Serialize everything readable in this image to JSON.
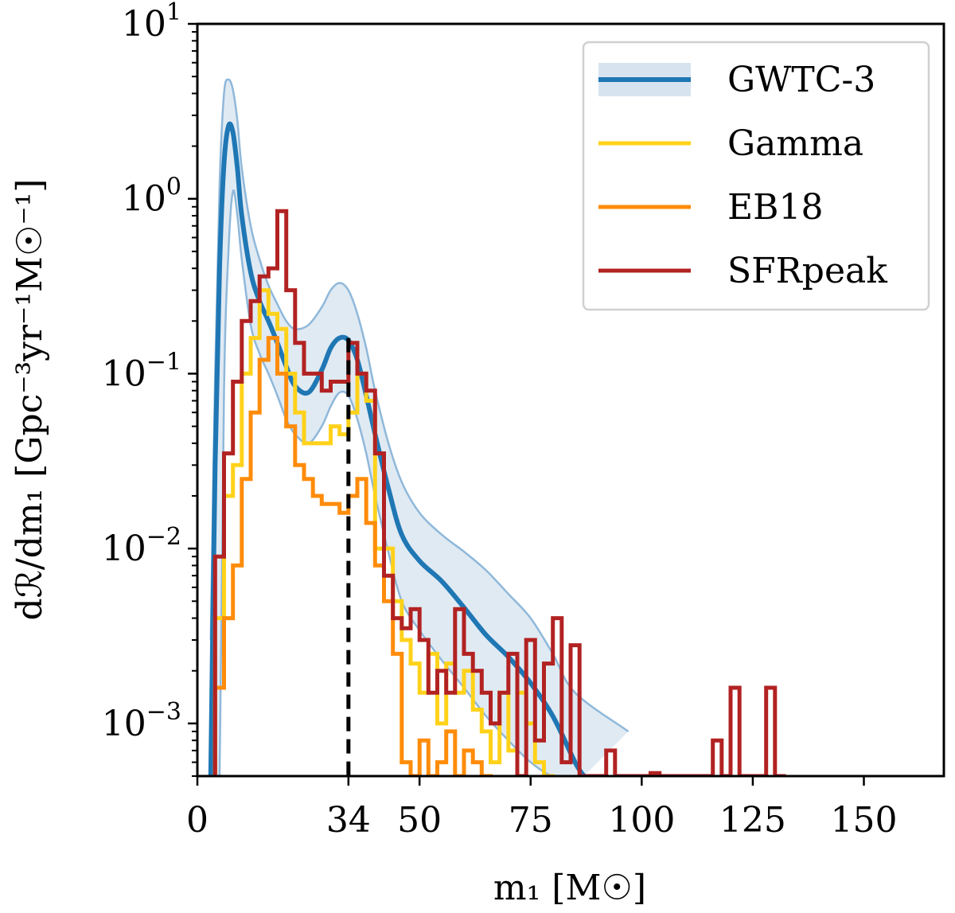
{
  "chart_data": {
    "type": "line",
    "title": "",
    "xlabel": "m₁ [M☉]",
    "ylabel": "dℛ/dm₁ [Gpc⁻³yr⁻¹M☉⁻¹]",
    "xscale": "linear",
    "yscale": "log",
    "xlim": [
      0,
      168
    ],
    "ylim": [
      0.0005,
      10
    ],
    "xticks": [
      0,
      34,
      50,
      75,
      100,
      125,
      150
    ],
    "xtick_labels": [
      "0",
      "34",
      "50",
      "75",
      "100",
      "125",
      "150"
    ],
    "yticks": [
      0.001,
      0.01,
      0.1,
      1,
      10
    ],
    "ytick_labels": [
      {
        "base": "10",
        "exp": "−3"
      },
      {
        "base": "10",
        "exp": "−2"
      },
      {
        "base": "10",
        "exp": "−1"
      },
      {
        "base": "10",
        "exp": "0"
      },
      {
        "base": "10",
        "exp": "1"
      }
    ],
    "legend_position": "top-right",
    "annotation": {
      "type": "vline",
      "x": 34,
      "style": "dashed",
      "y_from": 0.0005,
      "y_to": 0.16
    },
    "colors": {
      "gwtc": "#1f77b4",
      "band": "#c6d9ea",
      "gamma": "#ffd21a",
      "eb18": "#ff8c0a",
      "sfr": "#b22222"
    },
    "gwtc3": {
      "name": "GWTC-3",
      "x": [
        3,
        4,
        5,
        6,
        7,
        8,
        9,
        10,
        12,
        14,
        16,
        18,
        20,
        22,
        25,
        28,
        30,
        32,
        34,
        36,
        38,
        40,
        43,
        46,
        50,
        55,
        60,
        65,
        70,
        75,
        80,
        85,
        87
      ],
      "median": [
        0.0005,
        0.03,
        0.4,
        1.6,
        2.6,
        2.4,
        1.5,
        0.8,
        0.38,
        0.26,
        0.2,
        0.15,
        0.11,
        0.085,
        0.078,
        0.105,
        0.14,
        0.16,
        0.155,
        0.12,
        0.075,
        0.045,
        0.022,
        0.012,
        0.0085,
        0.0065,
        0.0046,
        0.0032,
        0.0024,
        0.0017,
        0.0011,
        0.0006,
        0.0005
      ],
      "upper": [
        0.003,
        0.1,
        1.2,
        4.0,
        4.8,
        4.2,
        2.8,
        1.5,
        0.7,
        0.45,
        0.32,
        0.25,
        0.2,
        0.18,
        0.19,
        0.24,
        0.3,
        0.33,
        0.3,
        0.22,
        0.14,
        0.08,
        0.04,
        0.024,
        0.016,
        0.012,
        0.0096,
        0.0075,
        0.0055,
        0.004,
        0.0025,
        0.0015,
        0.0009
      ],
      "lower": [
        0.0005,
        0.0005,
        0.0005,
        0.08,
        0.5,
        1.1,
        0.8,
        0.45,
        0.19,
        0.13,
        0.1,
        0.075,
        0.055,
        0.045,
        0.04,
        0.05,
        0.065,
        0.078,
        0.075,
        0.055,
        0.035,
        0.02,
        0.0095,
        0.005,
        0.0034,
        0.0023,
        0.0016,
        0.0011,
        0.0008,
        0.0006,
        0.0005,
        0.0005,
        0.0005
      ],
      "band_x_max": 97
    },
    "histograms": [
      {
        "name": "Gamma",
        "color_key": "gamma",
        "edges": [
          4,
          6,
          8,
          10,
          12,
          14,
          16,
          18,
          20,
          22,
          24,
          26,
          28,
          30,
          32,
          34,
          36,
          38,
          40,
          42,
          44,
          46,
          48,
          50,
          52,
          54,
          56,
          58,
          60,
          62,
          64,
          66,
          68,
          70,
          72,
          74,
          76,
          78,
          80
        ],
        "values": [
          0.004,
          0.02,
          0.03,
          0.1,
          0.16,
          0.3,
          0.22,
          0.18,
          0.1,
          0.06,
          0.04,
          0.04,
          0.04,
          0.05,
          0.045,
          0.06,
          0.1,
          0.07,
          0.01,
          0.01,
          0.005,
          0.003,
          0.0022,
          0.0015,
          0.0025,
          0.001,
          0.0022,
          0.0015,
          0.002,
          0.0012,
          0.0009,
          0.0006,
          0.0015,
          0.0007,
          0.0015,
          0.001,
          0.0006,
          0.0005
        ]
      },
      {
        "name": "EB18",
        "color_key": "eb18",
        "edges": [
          4,
          6,
          8,
          10,
          12,
          14,
          16,
          18,
          20,
          22,
          24,
          26,
          28,
          30,
          32,
          34,
          36,
          38,
          40,
          42,
          44,
          46,
          48,
          50,
          52,
          54,
          56,
          58,
          60,
          62,
          64,
          66
        ],
        "values": [
          0.0016,
          0.004,
          0.008,
          0.025,
          0.06,
          0.12,
          0.16,
          0.1,
          0.05,
          0.03,
          0.025,
          0.02,
          0.018,
          0.018,
          0.016,
          0.02,
          0.025,
          0.014,
          0.008,
          0.005,
          0.0025,
          0.0006,
          0.0005,
          0.0008,
          0.0005,
          0.0006,
          0.0009,
          0.0005,
          0.0007,
          0.0006,
          0.0005
        ]
      },
      {
        "name": "SFRpeak",
        "color_key": "sfr",
        "edges": [
          4,
          6,
          8,
          10,
          12,
          14,
          16,
          18,
          20,
          22,
          24,
          26,
          28,
          30,
          32,
          34,
          36,
          38,
          40,
          42,
          44,
          46,
          48,
          50,
          52,
          54,
          56,
          58,
          60,
          62,
          64,
          66,
          68,
          70,
          72,
          74,
          76,
          78,
          80,
          82,
          84,
          86,
          88,
          90,
          92,
          94,
          96,
          98,
          100,
          102,
          104,
          106,
          108,
          110,
          112,
          114,
          116,
          118,
          120,
          122,
          124,
          126,
          128,
          130,
          132
        ],
        "values": [
          0.009,
          0.035,
          0.09,
          0.2,
          0.26,
          0.36,
          0.4,
          0.85,
          0.3,
          0.15,
          0.1,
          0.1,
          0.08,
          0.09,
          0.09,
          0.15,
          0.1,
          0.08,
          0.035,
          0.007,
          0.004,
          0.0035,
          0.0045,
          0.003,
          0.0015,
          0.002,
          0.0015,
          0.0045,
          0.0025,
          0.002,
          0.0015,
          0.001,
          0.0015,
          0.0025,
          0.0005,
          0.003,
          0.0008,
          0.0022,
          0.004,
          0.0006,
          0.0028,
          0.0005,
          0.0005,
          0.0005,
          0.0007,
          0.0005,
          0.0005,
          0.0005,
          0.0005,
          0.00052,
          0.0005,
          0.0005,
          0.0005,
          0.0005,
          0.0005,
          0.0005,
          0.0008,
          0.0005,
          0.0016,
          0.0005,
          0.0005,
          0.0005,
          0.0016,
          0.0005
        ]
      }
    ],
    "legend": [
      {
        "label": "GWTC-3",
        "key": "gwtc",
        "kind": "line-band"
      },
      {
        "label": "Gamma",
        "key": "gamma",
        "kind": "line"
      },
      {
        "label": "EB18",
        "key": "eb18",
        "kind": "line"
      },
      {
        "label": "SFRpeak",
        "key": "sfr",
        "kind": "line"
      }
    ]
  }
}
